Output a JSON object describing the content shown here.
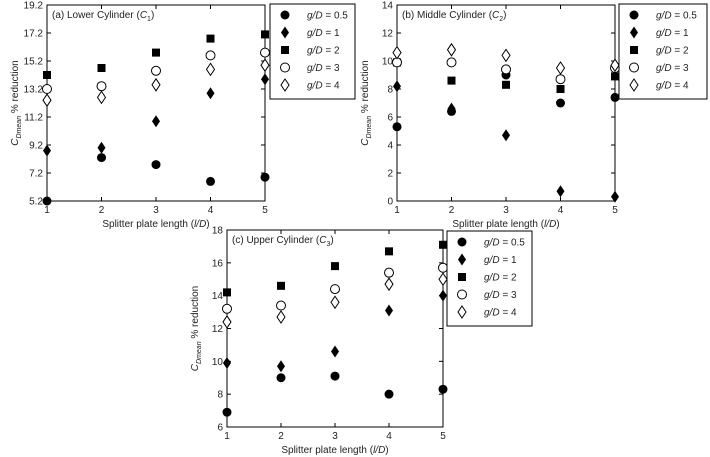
{
  "chart_data": [
    {
      "type": "scatter",
      "title": "(a) Lower Cylinder (C1)",
      "xlabel": "Splitter plate length (l/D)",
      "ylabel": "C_Dmean % reduction",
      "xlim": [
        1,
        5
      ],
      "ylim": [
        5.2,
        19.2
      ],
      "xticks": [
        "1",
        "2",
        "3",
        "4",
        "5"
      ],
      "yticks": [
        "5.2",
        "7.2",
        "9.2",
        "11.2",
        "13.2",
        "15.2",
        "17.2",
        "19.2"
      ],
      "grid": false,
      "legend_position": "right",
      "series": [
        {
          "name": "g/D = 0.5",
          "marker": "filled-circle",
          "x": [
            1,
            2,
            3,
            4,
            5
          ],
          "y": [
            5.2,
            8.3,
            7.8,
            6.6,
            6.9
          ]
        },
        {
          "name": "g/D = 1",
          "marker": "filled-diamond",
          "x": [
            1,
            2,
            3,
            4,
            5
          ],
          "y": [
            8.8,
            9.0,
            10.9,
            12.9,
            13.9
          ]
        },
        {
          "name": "g/D = 2",
          "marker": "filled-square",
          "x": [
            1,
            2,
            3,
            4,
            5
          ],
          "y": [
            14.2,
            14.7,
            15.8,
            16.8,
            17.1
          ]
        },
        {
          "name": "g/D = 3",
          "marker": "open-circle",
          "x": [
            1,
            2,
            3,
            4,
            5
          ],
          "y": [
            13.2,
            13.4,
            14.5,
            15.6,
            15.8
          ]
        },
        {
          "name": "g/D = 4",
          "marker": "open-diamond",
          "x": [
            1,
            2,
            3,
            4,
            5
          ],
          "y": [
            12.4,
            12.6,
            13.5,
            14.6,
            14.9
          ]
        }
      ]
    },
    {
      "type": "scatter",
      "title": "(b) Middle Cylinder (C2)",
      "xlabel": "Splitter plate length (l/D)",
      "ylabel": "C_Dmean % reduction",
      "xlim": [
        1,
        5
      ],
      "ylim": [
        0,
        14
      ],
      "xticks": [
        "1",
        "2",
        "3",
        "4",
        "5"
      ],
      "yticks": [
        "0",
        "2",
        "4",
        "6",
        "8",
        "10",
        "12",
        "14"
      ],
      "grid": false,
      "legend_position": "right",
      "series": [
        {
          "name": "g/D = 0.5",
          "marker": "filled-circle",
          "x": [
            1,
            2,
            3,
            4,
            5
          ],
          "y": [
            5.3,
            6.4,
            9.0,
            7.0,
            7.4
          ]
        },
        {
          "name": "g/D = 1",
          "marker": "filled-diamond",
          "x": [
            1,
            2,
            3,
            4,
            5
          ],
          "y": [
            8.2,
            6.6,
            4.7,
            0.7,
            0.3
          ]
        },
        {
          "name": "g/D = 2",
          "marker": "filled-square",
          "x": [
            1,
            2,
            3,
            4,
            5
          ],
          "y": [
            9.9,
            8.6,
            8.3,
            8.0,
            8.9
          ]
        },
        {
          "name": "g/D = 3",
          "marker": "open-circle",
          "x": [
            1,
            2,
            3,
            4,
            5
          ],
          "y": [
            9.9,
            9.9,
            9.4,
            8.7,
            9.5
          ]
        },
        {
          "name": "g/D = 4",
          "marker": "open-diamond",
          "x": [
            1,
            2,
            3,
            4,
            5
          ],
          "y": [
            10.6,
            10.8,
            10.4,
            9.5,
            9.7
          ]
        }
      ]
    },
    {
      "type": "scatter",
      "title": "(c) Upper Cylinder (C3)",
      "xlabel": "Splitter plate length (l/D)",
      "ylabel": "C_Dmean % reduction",
      "xlim": [
        1,
        5
      ],
      "ylim": [
        6,
        18
      ],
      "xticks": [
        "1",
        "2",
        "3",
        "4",
        "5"
      ],
      "yticks": [
        "6",
        "8",
        "10",
        "12",
        "14",
        "16",
        "18"
      ],
      "grid": false,
      "legend_position": "right",
      "series": [
        {
          "name": "g/D = 0.5",
          "marker": "filled-circle",
          "x": [
            1,
            2,
            3,
            4,
            5
          ],
          "y": [
            6.9,
            9.0,
            9.1,
            8.0,
            8.3
          ]
        },
        {
          "name": "g/D = 1",
          "marker": "filled-diamond",
          "x": [
            1,
            2,
            3,
            4,
            5
          ],
          "y": [
            9.9,
            9.7,
            10.6,
            13.1,
            14.0
          ]
        },
        {
          "name": "g/D = 2",
          "marker": "filled-square",
          "x": [
            1,
            2,
            3,
            4,
            5
          ],
          "y": [
            14.2,
            14.6,
            15.8,
            16.7,
            17.1
          ]
        },
        {
          "name": "g/D = 3",
          "marker": "open-circle",
          "x": [
            1,
            2,
            3,
            4,
            5
          ],
          "y": [
            13.2,
            13.4,
            14.4,
            15.4,
            15.7
          ]
        },
        {
          "name": "g/D = 4",
          "marker": "open-diamond",
          "x": [
            1,
            2,
            3,
            4,
            5
          ],
          "y": [
            12.4,
            12.7,
            13.6,
            14.7,
            15.0
          ]
        }
      ]
    }
  ]
}
